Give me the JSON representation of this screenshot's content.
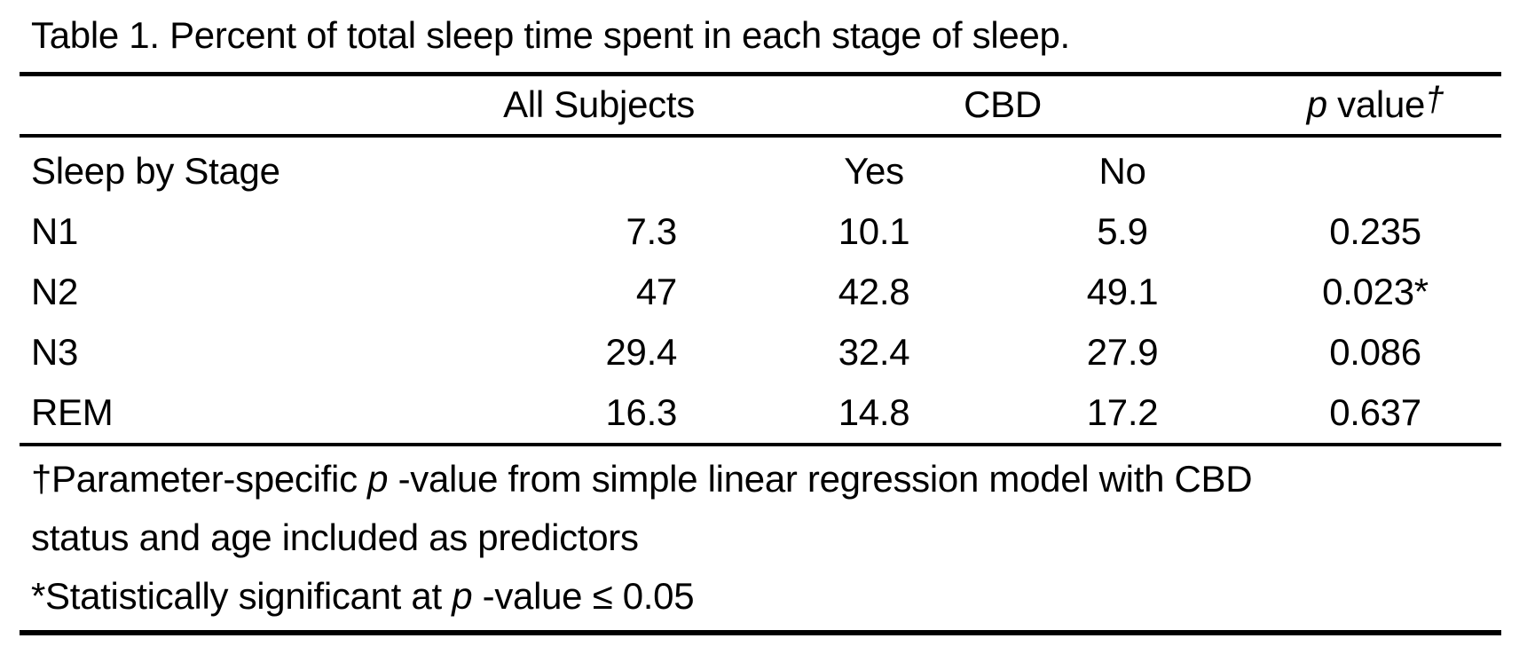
{
  "title": "Table 1. Percent of total sleep time spent in each stage of sleep.",
  "columns": {
    "all_subjects": "All Subjects",
    "cbd": "CBD",
    "p_value": {
      "p": "p",
      "rest": " value",
      "dagger": "†"
    },
    "cbd_yes": "Yes",
    "cbd_no": "No"
  },
  "row_group_label": "Sleep by Stage",
  "rows": [
    {
      "stage": "N1",
      "all_subjects": "7.3",
      "cbd_yes": "10.1",
      "cbd_no": "5.9",
      "p_value": "0.235"
    },
    {
      "stage": "N2",
      "all_subjects": "47",
      "cbd_yes": "42.8",
      "cbd_no": "49.1",
      "p_value": "0.023*"
    },
    {
      "stage": "N3",
      "all_subjects": "29.4",
      "cbd_yes": "32.4",
      "cbd_no": "27.9",
      "p_value": "0.086"
    },
    {
      "stage": "REM",
      "all_subjects": "16.3",
      "cbd_yes": "14.8",
      "cbd_no": "17.2",
      "p_value": "0.637"
    }
  ],
  "footnotes": {
    "dagger_line1": {
      "pre": "†Parameter-specific ",
      "p": "p",
      "post": " -value from simple linear regression model with CBD"
    },
    "dagger_line2": "status and age included as predictors",
    "asterisk": {
      "pre": "*Statistically significant at ",
      "p": "p",
      "post": " -value ≤ 0.05"
    }
  },
  "colors": {
    "text": "#000000",
    "background": "#ffffff",
    "rule": "#000000"
  },
  "chart_data": {
    "type": "table",
    "title": "Table 1. Percent of total sleep time spent in each stage of sleep.",
    "columns": [
      "Sleep by Stage",
      "All Subjects",
      "CBD Yes",
      "CBD No",
      "p value†"
    ],
    "rows": [
      [
        "N1",
        7.3,
        10.1,
        5.9,
        "0.235"
      ],
      [
        "N2",
        47,
        42.8,
        49.1,
        "0.023*"
      ],
      [
        "N3",
        29.4,
        32.4,
        27.9,
        "0.086"
      ],
      [
        "REM",
        16.3,
        14.8,
        17.2,
        "0.637"
      ]
    ],
    "footnotes": [
      "†Parameter-specific p-value from simple linear regression model with CBD status and age included as predictors",
      "*Statistically significant at p-value ≤ 0.05"
    ]
  }
}
